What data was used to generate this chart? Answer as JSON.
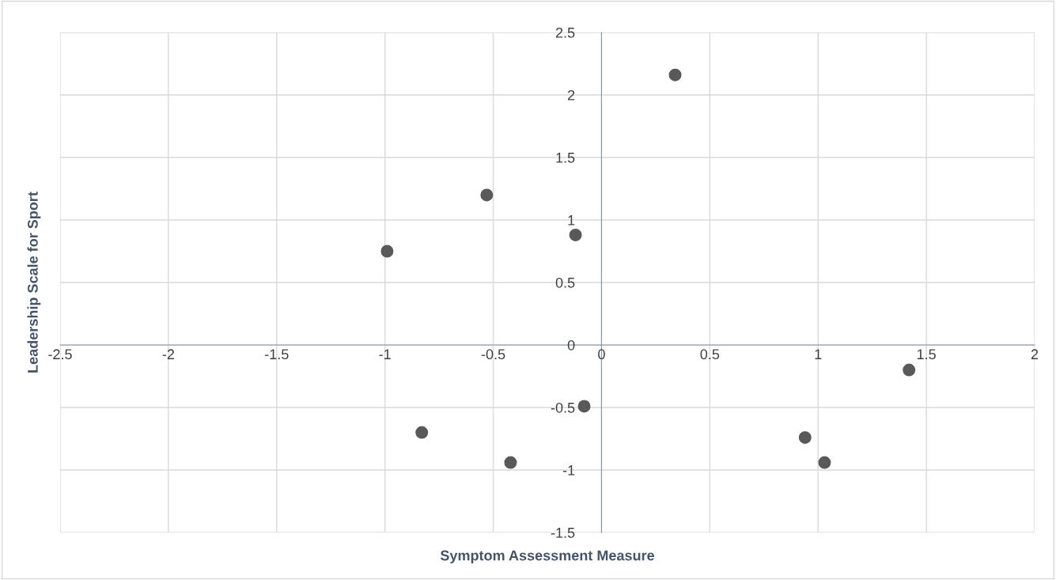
{
  "chart_data": {
    "type": "scatter",
    "xlabel": "Symptom Assessment Measure",
    "ylabel": "Leadership Scale for Sport",
    "x": [
      0.34,
      -0.53,
      -0.12,
      -0.99,
      -0.08,
      -0.83,
      -0.42,
      0.94,
      1.03,
      1.42
    ],
    "series": [
      {
        "color": "#595959",
        "values": [
          2.16,
          1.2,
          0.88,
          0.75,
          -0.49,
          -0.7,
          -0.94,
          -0.74,
          -0.94,
          -0.2
        ]
      }
    ],
    "xlim": [
      -2.5,
      2
    ],
    "ylim": [
      -1.5,
      2.5
    ],
    "xticks": [
      -2.5,
      -2,
      -1.5,
      -1,
      -0.5,
      0,
      0.5,
      1,
      1.5,
      2
    ],
    "yticks": [
      -1.5,
      -1,
      -0.5,
      0,
      0.5,
      1,
      1.5,
      2,
      2.5
    ],
    "grid": true,
    "marker": "circle",
    "legend": false
  }
}
